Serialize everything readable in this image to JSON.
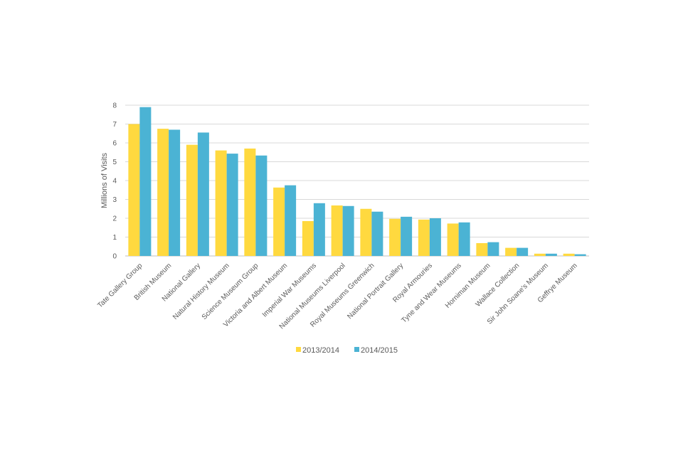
{
  "chart_data": {
    "type": "bar",
    "title": "",
    "xlabel": "",
    "ylabel": "Millions of Visits",
    "ylim": [
      0,
      8
    ],
    "yticks": [
      0,
      1,
      2,
      3,
      4,
      5,
      6,
      7,
      8
    ],
    "grid": true,
    "legend_position": "bottom",
    "categories": [
      "Tate Gallery Group",
      "British Museum",
      "National Gallery",
      "Natural History Museum",
      "Science Museum Group",
      "Victoria and Albert Museum",
      "Imperial War Museums",
      "National Museums Liverpool",
      "Royal Museums Greenwich",
      "National Portrait Gallery",
      "Royal Armouries",
      "Tyne and Wear Museums",
      "Horniman Museum",
      "Wallace Collection",
      "Sir John Soane's Museum",
      "Geffrye Museum"
    ],
    "series": [
      {
        "name": "2013/2014",
        "color": "#FFD93F",
        "values": [
          7.0,
          6.75,
          5.9,
          5.6,
          5.7,
          3.63,
          1.85,
          2.68,
          2.5,
          1.97,
          1.93,
          1.72,
          0.68,
          0.43,
          0.12,
          0.12
        ]
      },
      {
        "name": "2014/2015",
        "color": "#4BB3D4",
        "values": [
          7.9,
          6.7,
          6.55,
          5.43,
          5.33,
          3.75,
          2.8,
          2.65,
          2.35,
          2.08,
          2.0,
          1.78,
          0.73,
          0.43,
          0.12,
          0.09
        ]
      }
    ]
  }
}
